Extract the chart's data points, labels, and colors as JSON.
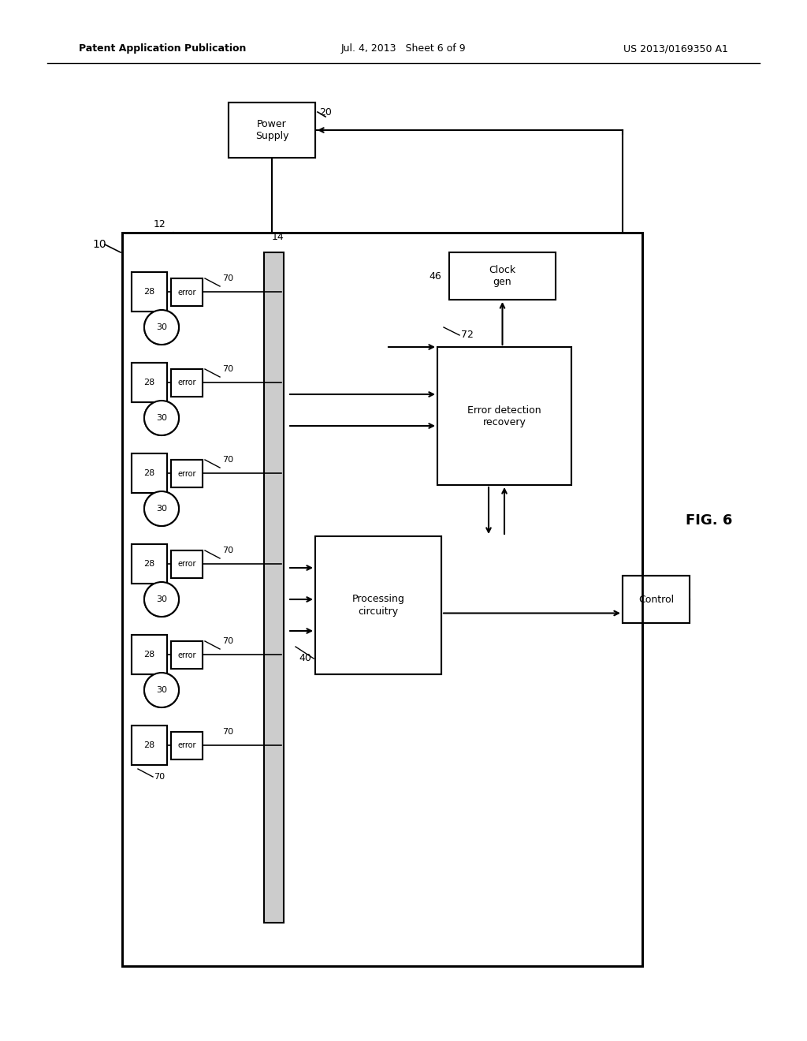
{
  "bg_color": "#ffffff",
  "line_color": "#000000",
  "header_left": "Patent Application Publication",
  "header_center": "Jul. 4, 2013   Sheet 6 of 9",
  "header_right": "US 2013/0169350 A1",
  "fig_label": "FIG. 6",
  "label_10": "10",
  "label_12": "12",
  "label_14": "14",
  "label_20": "20",
  "label_28": "28",
  "label_30": "30",
  "label_40": "40",
  "label_46": "46",
  "label_70": "70",
  "label_72": "72",
  "box_power_supply": "Power\nSupply",
  "box_clock_gen": "Clock\ngen",
  "box_error_det": "Error detection\nrecovery",
  "box_processing": "Processing\ncircuitry",
  "box_control": "Control",
  "box_error": "error"
}
